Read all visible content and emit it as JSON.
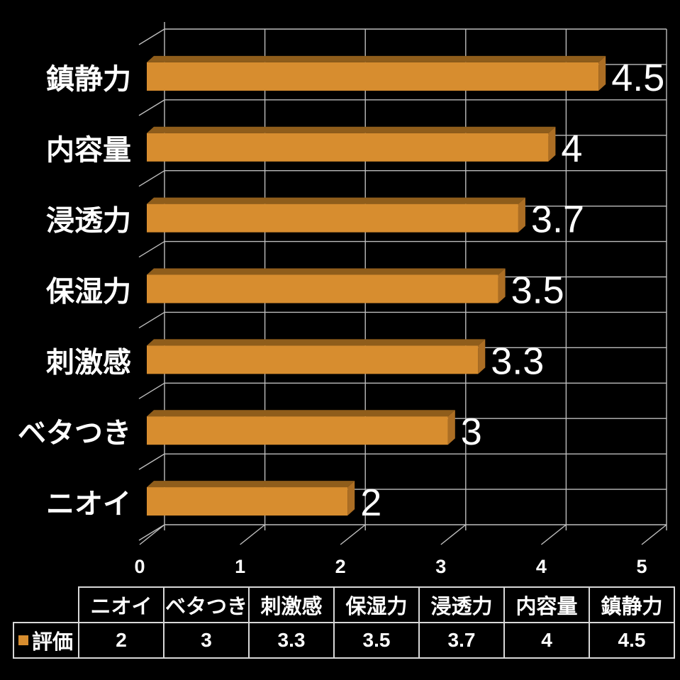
{
  "chart_data": {
    "type": "bar",
    "orientation": "horizontal",
    "style": "3d",
    "title": "",
    "categories": [
      "鎮静力",
      "内容量",
      "浸透力",
      "保湿力",
      "刺激感",
      "ベタつき",
      "ニオイ"
    ],
    "series": [
      {
        "name": "評価",
        "values": [
          4.5,
          4,
          3.7,
          3.5,
          3.3,
          3,
          2
        ]
      }
    ],
    "value_labels": [
      "4.5",
      "4",
      "3.7",
      "3.5",
      "3.3",
      "3",
      "2"
    ],
    "x_ticks": [
      "0",
      "1",
      "2",
      "3",
      "4",
      "5"
    ],
    "xlim": [
      0,
      5
    ],
    "grid": true,
    "legend_position": "bottom-table",
    "colors": {
      "background": "#000000",
      "bar_front": "#d78d2f",
      "bar_top": "#8f5d1b",
      "bar_end": "#ac6e24",
      "gridline": "#bdbdbd",
      "text": "#ffffff",
      "table_border": "#d8d8d8"
    }
  },
  "table": {
    "row_label": "評価",
    "headers": [
      "ニオイ",
      "ベタつき",
      "刺激感",
      "保湿力",
      "浸透力",
      "内容量",
      "鎮静力"
    ],
    "values": [
      "2",
      "3",
      "3.3",
      "3.5",
      "3.7",
      "4",
      "4.5"
    ]
  }
}
